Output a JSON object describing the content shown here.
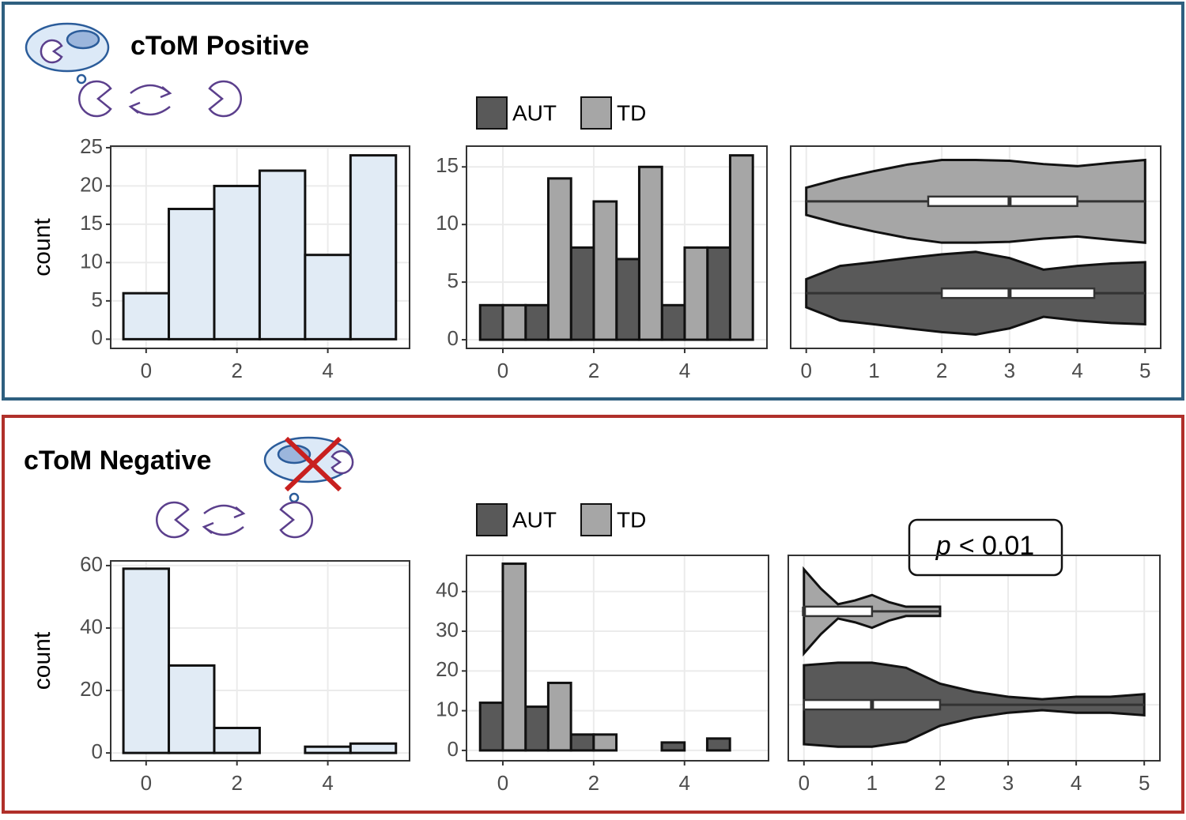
{
  "panels": [
    {
      "title": "cToM Positive"
    },
    {
      "title": "cToM Negative"
    }
  ],
  "chart_data": [
    {
      "type": "histogram",
      "ylabel": "count",
      "color": "#e1ebf5",
      "bins": [
        -0.5,
        0.5,
        1.5,
        2.5,
        3.5,
        4.5,
        5.5
      ],
      "values": [
        6,
        17,
        20,
        22,
        11,
        24
      ],
      "xlim": [
        -0.78,
        5.8
      ],
      "xticks": [
        0,
        2,
        4
      ],
      "ylim": [
        -1.2,
        25.2
      ],
      "yticks": [
        0,
        5,
        10,
        15,
        20,
        25
      ],
      "grid": true
    },
    {
      "type": "bar",
      "x": [
        0,
        1,
        2,
        3,
        4,
        5
      ],
      "series": [
        {
          "name": "AUT",
          "color": "#595959",
          "values": [
            3,
            3,
            8,
            7,
            3,
            8
          ]
        },
        {
          "name": "TD",
          "color": "#a6a6a6",
          "values": [
            3,
            14,
            12,
            15,
            8,
            16
          ]
        }
      ],
      "xlim": [
        -0.8,
        5.81
      ],
      "xticks": [
        0,
        2,
        4
      ],
      "ylim": [
        -0.75,
        16.8
      ],
      "yticks": [
        0,
        5,
        10,
        15
      ],
      "grid": true
    },
    {
      "type": "violin",
      "xlim": [
        -0.23,
        5.23
      ],
      "xticks": [
        0,
        1,
        2,
        3,
        4,
        5
      ],
      "grid": true,
      "series": [
        {
          "color": "#595959",
          "box": {
            "min": 0,
            "q1": 2,
            "median": 3,
            "q3": 4.25,
            "max": 5
          },
          "density_x": [
            0,
            0.5,
            1,
            1.5,
            2,
            2.5,
            3,
            3.5,
            4,
            4.5,
            5
          ],
          "density": [
            0.34,
            0.66,
            0.75,
            0.85,
            0.94,
            1,
            0.85,
            0.57,
            0.66,
            0.72,
            0.75
          ]
        },
        {
          "color": "#a6a6a6",
          "box": {
            "min": 0,
            "q1": 1.8,
            "median": 3,
            "q3": 4,
            "max": 5
          },
          "density_x": [
            0,
            0.5,
            1,
            1.5,
            2,
            2.5,
            3,
            3.5,
            4,
            4.5,
            5
          ],
          "density": [
            0.33,
            0.55,
            0.73,
            0.89,
            1,
            1,
            0.98,
            0.9,
            0.85,
            0.93,
            1
          ]
        }
      ]
    },
    {
      "type": "histogram",
      "ylabel": "count",
      "color": "#e1ebf5",
      "bins": [
        -0.5,
        0.5,
        1.5,
        2.5,
        3.5,
        4.5,
        5.5
      ],
      "values": [
        59,
        28,
        8,
        0,
        2,
        3
      ],
      "xlim": [
        -0.78,
        5.8
      ],
      "xticks": [
        0,
        2,
        4
      ],
      "ylim": [
        -2.5,
        61.5
      ],
      "yticks": [
        0,
        20,
        40,
        60
      ],
      "grid": true
    },
    {
      "type": "bar",
      "x": [
        0,
        1,
        2,
        3,
        4,
        5
      ],
      "series": [
        {
          "name": "AUT",
          "color": "#595959",
          "values": [
            12,
            11,
            4,
            0,
            2,
            3
          ]
        },
        {
          "name": "TD",
          "color": "#a6a6a6",
          "values": [
            47,
            17,
            4,
            0,
            0,
            0
          ]
        }
      ],
      "xlim": [
        -0.8,
        5.85
      ],
      "xticks": [
        0,
        2,
        4
      ],
      "ylim": [
        -2.6,
        49.1
      ],
      "yticks": [
        0,
        10,
        20,
        30,
        40
      ],
      "grid": true
    },
    {
      "type": "violin",
      "xlim": [
        -0.23,
        5.23
      ],
      "xticks": [
        0,
        1,
        2,
        3,
        4,
        5
      ],
      "grid": true,
      "annotation": {
        "italic": "p",
        "text": "< 0.01"
      },
      "series": [
        {
          "color": "#595959",
          "box": {
            "min": 0,
            "q1": 0,
            "median": 1,
            "q3": 2,
            "max": 5
          },
          "density_x": [
            0,
            0.5,
            1,
            1.5,
            2,
            2.5,
            3,
            3.5,
            4,
            4.5,
            5
          ],
          "density": [
            0.94,
            1,
            1,
            0.88,
            0.5,
            0.31,
            0.19,
            0.13,
            0.19,
            0.19,
            0.25
          ]
        },
        {
          "color": "#a6a6a6",
          "box": {
            "min": 0,
            "q1": 0,
            "median": 0,
            "q3": 1,
            "max": 2
          },
          "density_x": [
            0,
            0.25,
            0.5,
            0.75,
            1,
            1.25,
            1.5,
            1.75,
            2
          ],
          "density": [
            1,
            0.54,
            0.17,
            0.26,
            0.39,
            0.22,
            0.11,
            0.11,
            0.11
          ]
        }
      ]
    }
  ]
}
